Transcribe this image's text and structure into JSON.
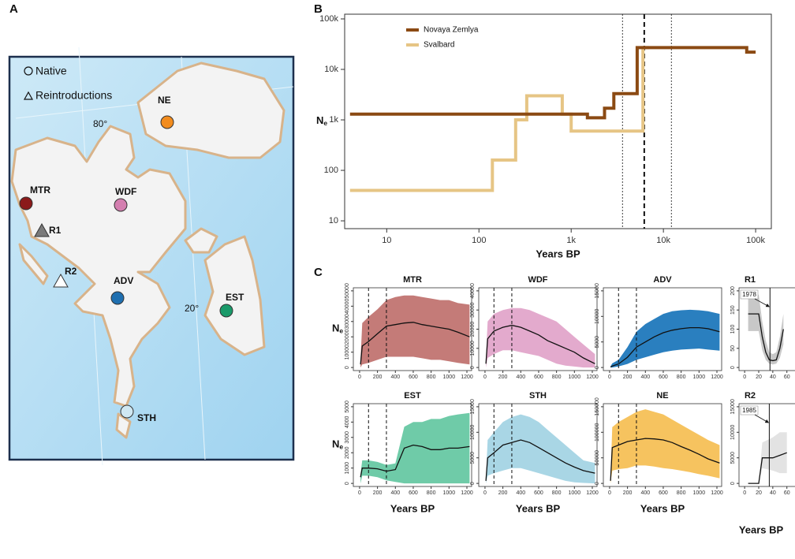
{
  "panel_labels": [
    "A",
    "B",
    "C"
  ],
  "map": {
    "legend": [
      "Native",
      "Reintroductions"
    ],
    "graticule_labels": [
      "80°",
      "20°"
    ],
    "sites": [
      {
        "label": "NE",
        "color": "#f28c1e",
        "shape": "circle"
      },
      {
        "label": "MTR",
        "color": "#8b1a1a",
        "shape": "circle"
      },
      {
        "label": "WDF",
        "color": "#d47fb0",
        "shape": "circle"
      },
      {
        "label": "R1",
        "color": "#7a7a7a",
        "shape": "triangle"
      },
      {
        "label": "R2",
        "color": "#ffffff",
        "shape": "triangle"
      },
      {
        "label": "ADV",
        "color": "#1f6fb0",
        "shape": "circle"
      },
      {
        "label": "EST",
        "color": "#1a9a6a",
        "shape": "circle"
      },
      {
        "label": "STH",
        "color": "#cfe7f2",
        "shape": "circle"
      }
    ]
  },
  "chart_data": [
    {
      "type": "line",
      "xlabel": "Years BP",
      "ylabel": "N",
      "ylabel_subscript": "e",
      "log_x": true,
      "log_y": true,
      "legend": "top-left",
      "xlim": [
        3.5,
        148000
      ],
      "xticks": [
        10,
        100,
        {
          "value": 1000,
          "label": "1k"
        },
        {
          "value": 10000,
          "label": "10k"
        },
        {
          "value": 100000,
          "label": "100k"
        }
      ],
      "ylim": [
        7,
        124000
      ],
      "yticks": [
        10,
        100,
        {
          "value": 1000,
          "label": "1k"
        },
        {
          "value": 10000,
          "label": "10k"
        },
        {
          "value": 100000,
          "label": "100k"
        }
      ],
      "vlines": [
        {
          "value": 3600,
          "style": "dotted"
        },
        {
          "value": 6200,
          "style": "dashed"
        },
        {
          "value": 12200,
          "style": "dotted"
        }
      ],
      "series": [
        {
          "name": "Novaya Zemlya",
          "color": "#8b4a13",
          "x": [
            4,
            1500,
            1500,
            2300,
            2300,
            2900,
            2900,
            5200,
            5200,
            80000,
            80000,
            100000
          ],
          "values": [
            1300,
            1300,
            1100,
            1100,
            1700,
            1700,
            3300,
            3300,
            27000,
            27000,
            22000,
            22000
          ]
        },
        {
          "name": "Svalbard",
          "color": "#e6c585",
          "x": [
            4,
            140,
            140,
            250,
            250,
            330,
            330,
            800,
            800,
            1000,
            1000,
            6000,
            6000,
            7000
          ],
          "values": [
            40,
            40,
            160,
            160,
            1000,
            1000,
            3000,
            3000,
            1300,
            1300,
            600,
            600,
            27000,
            27000
          ]
        }
      ]
    },
    {
      "type": "band",
      "title": "MTR",
      "ylabel": "N",
      "ylabel_subscript": "e",
      "color": "#c47b78",
      "xlim": [
        -70,
        1253
      ],
      "xticks": [
        0,
        200,
        400,
        600,
        800,
        1000,
        1200
      ],
      "vlines": [
        100,
        300
      ],
      "ylim": [
        -2000,
        52000
      ],
      "yticks": [
        0,
        10000,
        20000,
        30000,
        40000,
        50000
      ],
      "x": [
        10,
        30,
        100,
        200,
        300,
        400,
        500,
        600,
        700,
        800,
        900,
        1000,
        1100,
        1230
      ],
      "values": [
        2000,
        14000,
        17000,
        22000,
        27000,
        28000,
        29000,
        29500,
        28000,
        27000,
        26000,
        25000,
        23000,
        20000
      ],
      "upper": [
        5000,
        29000,
        33000,
        38000,
        44000,
        46000,
        47000,
        47000,
        46000,
        45000,
        44000,
        44000,
        42000,
        41000
      ],
      "lower": [
        0,
        2000,
        3000,
        5000,
        7000,
        7000,
        7000,
        7000,
        6000,
        5000,
        5000,
        4000,
        3000,
        2000
      ]
    },
    {
      "type": "band",
      "title": "WDF",
      "color": "#e3aacd",
      "xlim": [
        -70,
        1253
      ],
      "xticks": [
        0,
        200,
        400,
        600,
        800,
        1000,
        1200
      ],
      "vlines": [
        100,
        300
      ],
      "ylim": [
        -1600,
        41600
      ],
      "yticks": [
        0,
        10000,
        20000,
        30000,
        40000
      ],
      "x": [
        10,
        30,
        100,
        200,
        300,
        400,
        500,
        600,
        700,
        800,
        900,
        1000,
        1100,
        1230
      ],
      "values": [
        2000,
        15000,
        19000,
        21000,
        22000,
        21000,
        19000,
        17000,
        14000,
        12000,
        10000,
        8000,
        5000,
        2000
      ],
      "upper": [
        5000,
        24000,
        28000,
        30000,
        31000,
        31000,
        30000,
        28000,
        26000,
        24000,
        20000,
        16000,
        12000,
        7000
      ],
      "lower": [
        0,
        5000,
        7000,
        9000,
        9000,
        8000,
        7000,
        6000,
        4000,
        2000,
        1000,
        500,
        0,
        0
      ]
    },
    {
      "type": "band",
      "title": "ADV",
      "color": "#2a7fbf",
      "xlim": [
        -70,
        1253
      ],
      "xticks": [
        0,
        200,
        400,
        600,
        800,
        1000,
        1200
      ],
      "vlines": [
        100,
        300
      ],
      "ylim": [
        -600,
        15600
      ],
      "yticks": [
        0,
        5000,
        10000,
        15000
      ],
      "x": [
        10,
        30,
        100,
        200,
        300,
        400,
        500,
        600,
        700,
        800,
        900,
        1000,
        1100,
        1230
      ],
      "values": [
        100,
        300,
        700,
        2000,
        4000,
        5000,
        6000,
        6800,
        7300,
        7600,
        7800,
        7800,
        7600,
        7000
      ],
      "upper": [
        200,
        800,
        1500,
        4000,
        7000,
        8500,
        9500,
        10500,
        11000,
        11200,
        11300,
        11200,
        11000,
        10500
      ],
      "lower": [
        0,
        0,
        200,
        700,
        1500,
        2000,
        2500,
        3000,
        3300,
        3500,
        3600,
        3700,
        3500,
        3300
      ]
    },
    {
      "type": "band",
      "title": "R1",
      "color": "#c8c8c8",
      "event": {
        "value": 36,
        "label": "1978"
      },
      "xlim": [
        -8,
        160
      ],
      "xticks": [
        0,
        20,
        40,
        60
      ],
      "ylim": [
        -8,
        208
      ],
      "yticks": [
        0,
        50,
        100,
        150,
        200
      ],
      "x": [
        5,
        20,
        25,
        30,
        35,
        40,
        45,
        50,
        55
      ],
      "values": [
        140,
        140,
        80,
        40,
        20,
        18,
        20,
        50,
        100
      ],
      "upper": [
        190,
        190,
        120,
        70,
        40,
        35,
        40,
        80,
        140
      ],
      "lower": [
        95,
        95,
        45,
        20,
        10,
        8,
        10,
        25,
        60
      ]
    },
    {
      "type": "band",
      "title": "EST",
      "ylabel": "N",
      "ylabel_subscript": "e",
      "xlabel": "Years BP",
      "color": "#6fcba8",
      "xlim": [
        -70,
        1253
      ],
      "xticks": [
        0,
        200,
        400,
        600,
        800,
        1000,
        1200
      ],
      "vlines": [
        100,
        300
      ],
      "ylim": [
        -200,
        5200
      ],
      "yticks": [
        0,
        1000,
        2000,
        3000,
        4000,
        5000
      ],
      "x": [
        10,
        30,
        100,
        200,
        300,
        400,
        500,
        600,
        700,
        800,
        900,
        1000,
        1100,
        1230
      ],
      "values": [
        400,
        1000,
        1000,
        950,
        800,
        900,
        2300,
        2500,
        2400,
        2200,
        2200,
        2300,
        2300,
        2400
      ],
      "upper": [
        600,
        1500,
        1500,
        1400,
        1200,
        1300,
        3700,
        4000,
        4000,
        4200,
        4200,
        4400,
        4500,
        4600
      ],
      "lower": [
        0,
        500,
        500,
        400,
        200,
        100,
        0,
        0,
        0,
        0,
        0,
        0,
        0,
        0
      ]
    },
    {
      "type": "band",
      "title": "STH",
      "xlabel": "Years BP",
      "color": "#a9d6e5",
      "xlim": [
        -70,
        1253
      ],
      "xticks": [
        0,
        200,
        400,
        600,
        800,
        1000,
        1200
      ],
      "vlines": [
        100,
        300
      ],
      "ylim": [
        -600,
        15600
      ],
      "yticks": [
        0,
        5000,
        10000,
        15000
      ],
      "x": [
        10,
        30,
        100,
        200,
        300,
        400,
        500,
        600,
        700,
        800,
        900,
        1000,
        1100,
        1230
      ],
      "values": [
        500,
        5000,
        6000,
        7500,
        8000,
        8500,
        8000,
        7000,
        6000,
        5000,
        4000,
        3200,
        2500,
        2000
      ],
      "upper": [
        1000,
        8500,
        10000,
        12000,
        13000,
        13500,
        13000,
        12000,
        10500,
        9000,
        7500,
        6000,
        4500,
        4000
      ],
      "lower": [
        0,
        1500,
        2000,
        2500,
        3000,
        3000,
        2500,
        2000,
        1500,
        1000,
        500,
        200,
        100,
        0
      ]
    },
    {
      "type": "band",
      "title": "NE",
      "xlabel": "Years BP",
      "color": "#f6c35f",
      "xlim": [
        -70,
        1253
      ],
      "xticks": [
        0,
        200,
        400,
        600,
        800,
        1000,
        1200
      ],
      "vlines": [
        100,
        300
      ],
      "ylim": [
        -6000,
        156000
      ],
      "yticks": [
        0,
        50000,
        100000,
        150000
      ],
      "x": [
        10,
        30,
        100,
        200,
        300,
        400,
        500,
        600,
        700,
        800,
        900,
        1000,
        1100,
        1230
      ],
      "values": [
        5000,
        70000,
        75000,
        82000,
        85000,
        88000,
        87000,
        85000,
        80000,
        72000,
        65000,
        57000,
        48000,
        40000
      ],
      "upper": [
        10000,
        110000,
        120000,
        130000,
        140000,
        145000,
        140000,
        135000,
        125000,
        115000,
        105000,
        95000,
        85000,
        75000
      ],
      "lower": [
        0,
        25000,
        28000,
        30000,
        35000,
        35000,
        33000,
        30000,
        28000,
        25000,
        22000,
        18000,
        15000,
        10000
      ]
    },
    {
      "type": "band",
      "title": "R2",
      "xlabel": "Years BP",
      "color": "#e3e3e3",
      "event": {
        "value": 35,
        "label": "1985"
      },
      "xlim": [
        -8,
        160
      ],
      "xticks": [
        0,
        20,
        40,
        60
      ],
      "ylim": [
        -600,
        15600
      ],
      "yticks": [
        0,
        5000,
        10000,
        15000
      ],
      "x": [
        5,
        20,
        25,
        40,
        50,
        60
      ],
      "values": [
        0,
        0,
        5000,
        5000,
        5500,
        6000
      ],
      "upper": [
        0,
        0,
        8000,
        9000,
        10000,
        10000
      ],
      "lower": [
        0,
        0,
        3000,
        2500,
        2000,
        2000
      ]
    }
  ]
}
